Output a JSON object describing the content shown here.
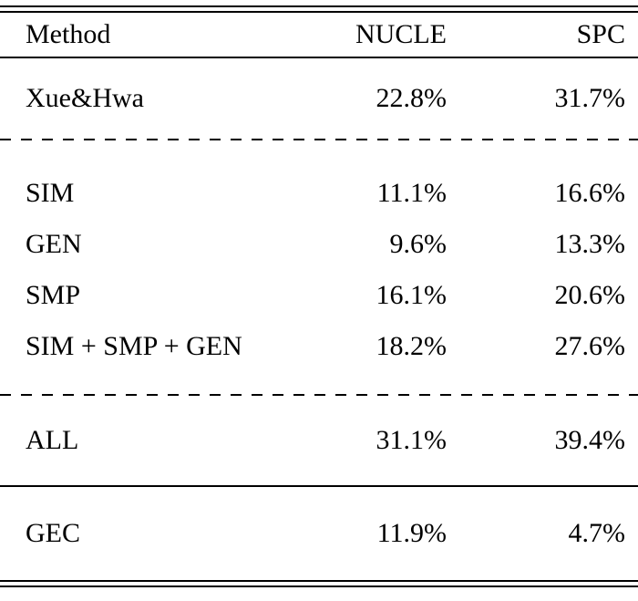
{
  "table": {
    "headers": [
      "Method",
      "NUCLE",
      "SPC"
    ],
    "rows": [
      {
        "method": "Xue&Hwa",
        "nucle": "22.8%",
        "spc": "31.7%"
      },
      {
        "method": "SIM",
        "nucle": "11.1%",
        "spc": "16.6%"
      },
      {
        "method": "GEN",
        "nucle": "9.6%",
        "spc": "13.3%"
      },
      {
        "method": "SMP",
        "nucle": "16.1%",
        "spc": "20.6%"
      },
      {
        "method": "SIM + SMP + GEN",
        "nucle": "18.2%",
        "spc": "27.6%"
      },
      {
        "method": "ALL",
        "nucle": "31.1%",
        "spc": "39.4%"
      },
      {
        "method": "GEC",
        "nucle": "11.9%",
        "spc": "4.7%"
      }
    ]
  },
  "chart_data": {
    "type": "table",
    "title": "",
    "columns": [
      "Method",
      "NUCLE",
      "SPC"
    ],
    "rows": [
      [
        "Xue&Hwa",
        22.8,
        31.7
      ],
      [
        "SIM",
        11.1,
        16.6
      ],
      [
        "GEN",
        9.6,
        13.3
      ],
      [
        "SMP",
        16.1,
        20.6
      ],
      [
        "SIM + SMP + GEN",
        18.2,
        27.6
      ],
      [
        "ALL",
        31.1,
        39.4
      ],
      [
        "GEC",
        11.9,
        4.7
      ]
    ],
    "unit": "%",
    "layout_hints": {
      "group_separators_dashed_after_rows": [
        0,
        4
      ],
      "group_separators_solid_after_rows": [
        5
      ],
      "top_and_bottom_rules": "double"
    }
  },
  "colors": {
    "text": "#000000",
    "background": "#ffffff",
    "rule": "#000000"
  }
}
